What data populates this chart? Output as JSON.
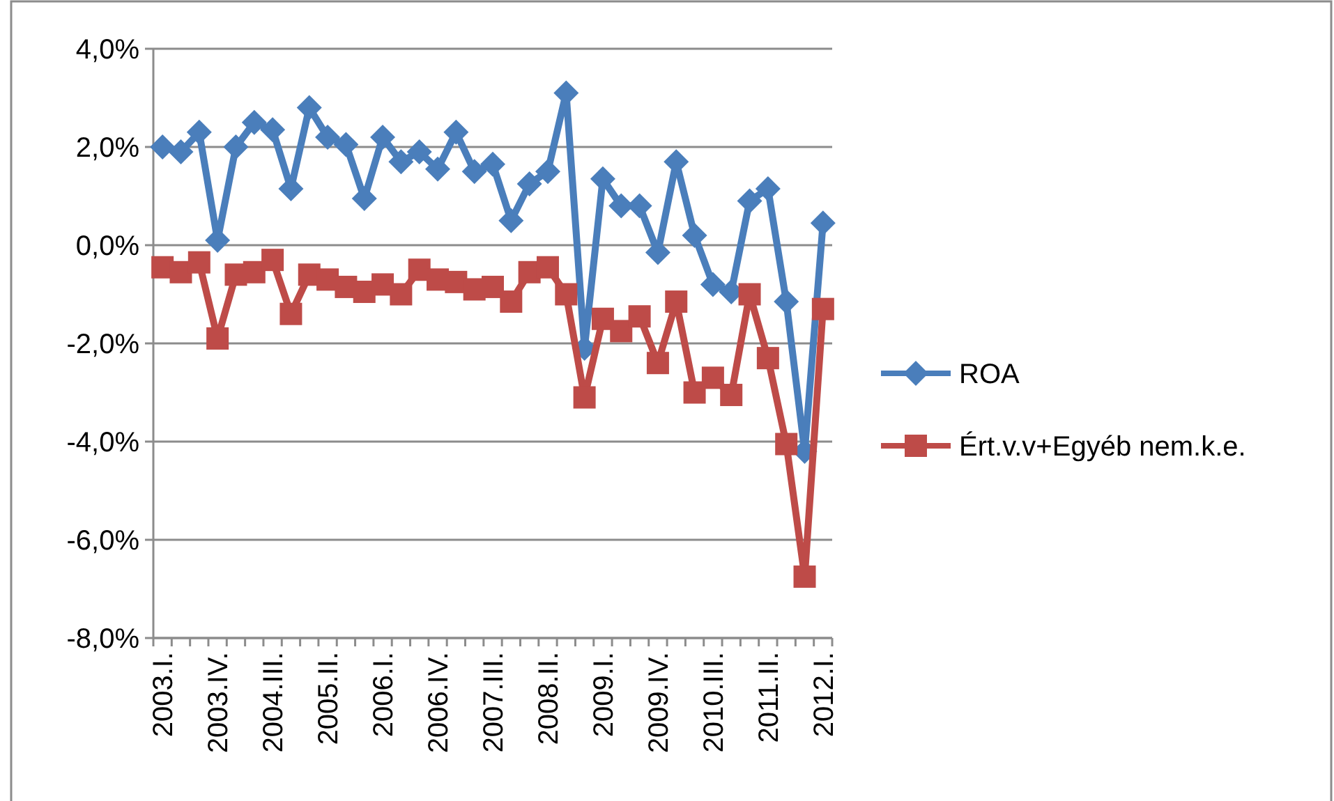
{
  "chart_data": {
    "type": "line",
    "categories": [
      "2003.I.",
      null,
      null,
      "2003.IV.",
      null,
      null,
      "2004.III.",
      null,
      null,
      "2005.II.",
      null,
      null,
      "2006.I.",
      null,
      null,
      "2006.IV.",
      null,
      null,
      "2007.III.",
      null,
      null,
      "2008.II.",
      null,
      null,
      "2009.I.",
      null,
      null,
      "2009.IV.",
      null,
      null,
      "2010.III.",
      null,
      null,
      "2011.II.",
      null,
      null,
      "2012.I."
    ],
    "series": [
      {
        "name": "ROA",
        "color": "#4a7ebb",
        "marker": "diamond",
        "values": [
          2.0,
          1.9,
          2.3,
          0.1,
          2.0,
          2.5,
          2.35,
          1.15,
          2.8,
          2.2,
          2.05,
          0.95,
          2.2,
          1.7,
          1.9,
          1.55,
          2.3,
          1.5,
          1.65,
          0.5,
          1.25,
          1.5,
          3.1,
          -2.1,
          1.35,
          0.8,
          0.8,
          -0.15,
          1.7,
          0.2,
          -0.8,
          -0.95,
          0.9,
          1.15,
          -1.15,
          -4.2,
          0.45
        ]
      },
      {
        "name": "Ért.v.v+Egyéb nem.k.e.",
        "color": "#be4b48",
        "marker": "square",
        "values": [
          -0.45,
          -0.55,
          -0.35,
          -1.9,
          -0.6,
          -0.55,
          -0.3,
          -1.4,
          -0.6,
          -0.7,
          -0.85,
          -0.95,
          -0.8,
          -1.0,
          -0.5,
          -0.7,
          -0.75,
          -0.9,
          -0.85,
          -1.15,
          -0.55,
          -0.45,
          -1.0,
          -3.1,
          -1.5,
          -1.75,
          -1.45,
          -2.4,
          -1.15,
          -3.0,
          -2.7,
          -3.05,
          -1.0,
          -2.3,
          -4.05,
          -6.75,
          -1.3
        ]
      }
    ],
    "ylim": [
      -8,
      4
    ],
    "yticks": [
      {
        "value": -8,
        "label": "-8,0%"
      },
      {
        "value": -6,
        "label": "-6,0%"
      },
      {
        "value": -4,
        "label": "-4,0%"
      },
      {
        "value": -2,
        "label": "-2,0%"
      },
      {
        "value": 0,
        "label": "0,0%"
      },
      {
        "value": 2,
        "label": "2,0%"
      },
      {
        "value": 4,
        "label": "4,0%"
      }
    ],
    "grid": "y",
    "legend": "right"
  }
}
